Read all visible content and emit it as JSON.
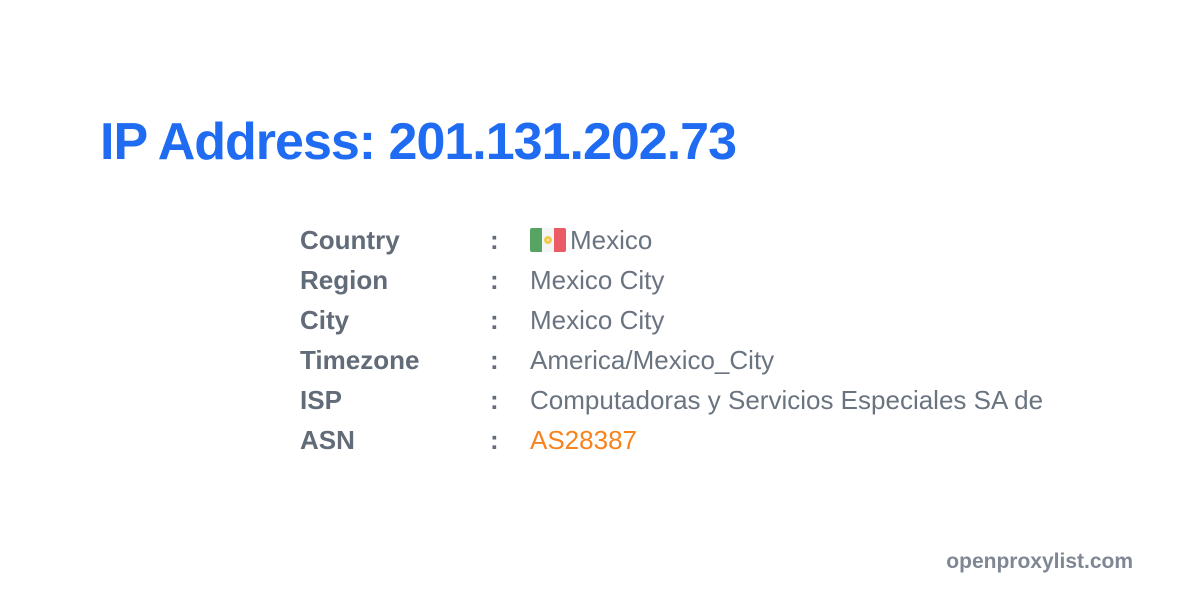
{
  "page": {
    "title": "IP Address: 201.131.202.73",
    "watermark": "openproxylist.com"
  },
  "colors": {
    "title_blue": "#1f6bf2",
    "label_gray": "#626c78",
    "value_gray": "#6a7480",
    "asn_orange": "#f8831d",
    "watermark_gray": "#7e8793",
    "flag_green": "#57a462",
    "flag_white": "#f4f5f4",
    "flag_red": "#eb5b65",
    "flag_emblem_gold": "#f2c94c"
  },
  "details": {
    "separator": ":",
    "rows": [
      {
        "label": "Country",
        "icon": "mexico-flag-icon",
        "value": "Mexico"
      },
      {
        "label": "Region",
        "value": "Mexico City"
      },
      {
        "label": "City",
        "value": "Mexico City"
      },
      {
        "label": "Timezone",
        "value": "America/Mexico_City"
      },
      {
        "label": "ISP",
        "value": "Computadoras y Servicios Especiales SA de"
      },
      {
        "label": "ASN",
        "value": "AS28387",
        "value_color": "asn_orange"
      }
    ]
  }
}
